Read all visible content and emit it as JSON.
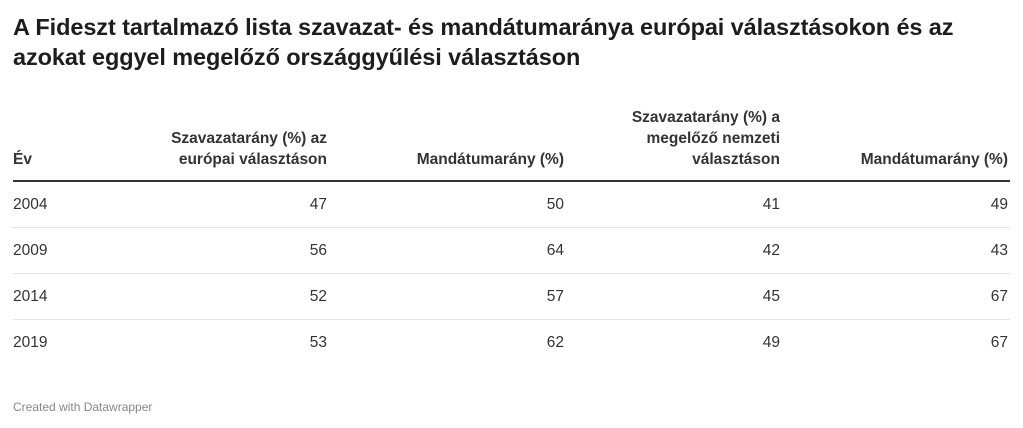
{
  "title": "A Fideszt tartalmazó lista szavazat- és mandátumaránya európai választásokon és az azokat eggyel megelőző országgyűlési választáson",
  "footer": "Created with Datawrapper",
  "chart_data": {
    "type": "table",
    "title": "A Fideszt tartalmazó lista szavazat- és mandátumaránya európai választásokon és az azokat eggyel megelőző országgyűlési választáson",
    "columns": [
      "Év",
      "Szavazatarány (%) az európai választáson",
      "Mandátumarány (%)",
      "Szavazatarány (%) a megelőző nemzeti választáson",
      "Mandátumarány (%)"
    ],
    "rows": [
      [
        "2004",
        "47",
        "50",
        "41",
        "49"
      ],
      [
        "2009",
        "56",
        "64",
        "42",
        "43"
      ],
      [
        "2014",
        "52",
        "57",
        "45",
        "67"
      ],
      [
        "2019",
        "53",
        "62",
        "49",
        "67"
      ]
    ]
  }
}
